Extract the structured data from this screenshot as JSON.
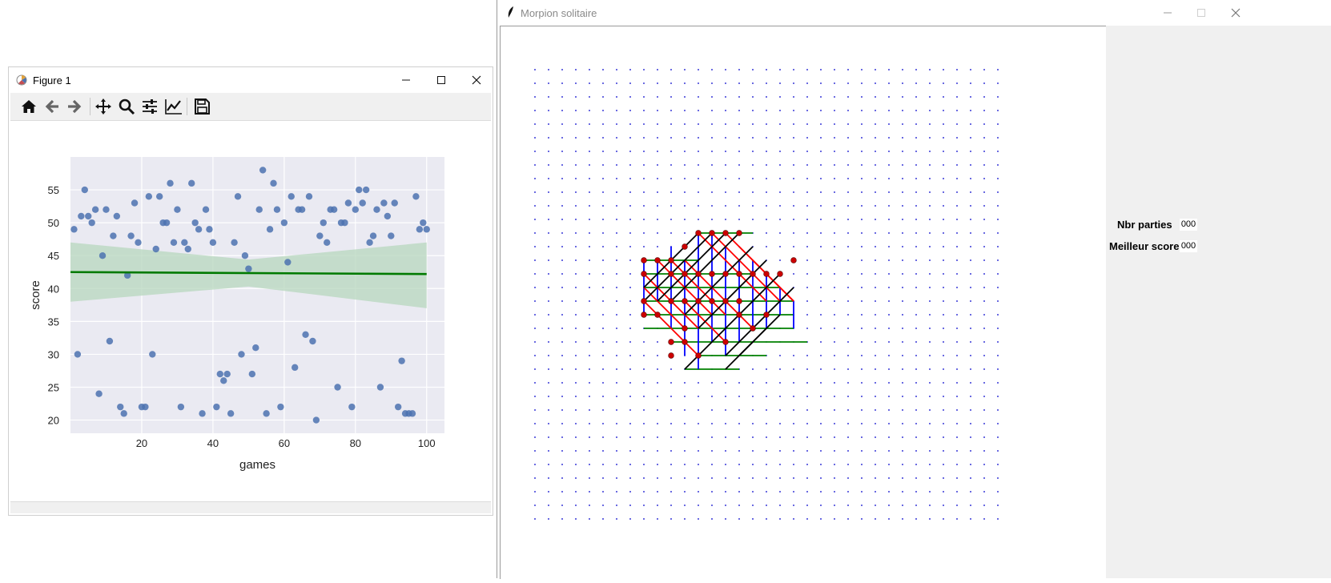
{
  "figure_window": {
    "title": "Figure 1",
    "toolbar": {
      "items": [
        "home-icon",
        "back-arrow-icon",
        "forward-arrow-icon",
        "pan-move-icon",
        "zoom-magnifier-icon",
        "subplots-config-icon",
        "edit-axis-icon",
        "save-floppy-icon"
      ]
    },
    "colors": {
      "points": "#4c72b0",
      "regression": "#007a00",
      "band": "#b7d7bd",
      "plot_bg": "#eaeaf2"
    }
  },
  "chart_data": {
    "type": "scatter",
    "title": "",
    "xlabel": "games",
    "ylabel": "score",
    "xlim": [
      0,
      105
    ],
    "ylim": [
      18,
      60
    ],
    "x_ticks": [
      20,
      40,
      60,
      80,
      100
    ],
    "y_ticks": [
      20,
      25,
      30,
      35,
      40,
      45,
      50,
      55
    ],
    "grid": true,
    "x": [
      1,
      2,
      3,
      4,
      5,
      6,
      7,
      8,
      9,
      10,
      11,
      12,
      13,
      14,
      15,
      16,
      17,
      18,
      19,
      20,
      21,
      22,
      23,
      24,
      25,
      26,
      27,
      28,
      29,
      30,
      31,
      32,
      33,
      34,
      35,
      36,
      37,
      38,
      39,
      40,
      41,
      42,
      43,
      44,
      45,
      46,
      47,
      48,
      49,
      50,
      51,
      52,
      53,
      54,
      55,
      56,
      57,
      58,
      59,
      60,
      61,
      62,
      63,
      64,
      65,
      66,
      67,
      68,
      69,
      70,
      71,
      72,
      73,
      74,
      75,
      76,
      77,
      78,
      79,
      80,
      81,
      82,
      83,
      84,
      85,
      86,
      87,
      88,
      89,
      90,
      91,
      92,
      93,
      94,
      95,
      96,
      97,
      98,
      99,
      100
    ],
    "values": [
      49,
      30,
      51,
      55,
      51,
      50,
      52,
      24,
      45,
      52,
      32,
      48,
      51,
      22,
      21,
      42,
      48,
      53,
      47,
      22,
      22,
      54,
      30,
      46,
      54,
      50,
      50,
      56,
      47,
      52,
      22,
      47,
      46,
      56,
      50,
      49,
      21,
      52,
      49,
      47,
      22,
      27,
      26,
      27,
      21,
      47,
      54,
      30,
      45,
      43,
      27,
      31,
      52,
      58,
      21,
      49,
      56,
      52,
      22,
      50,
      44,
      54,
      28,
      52,
      52,
      33,
      54,
      32,
      20,
      48,
      50,
      47,
      52,
      52,
      25,
      50,
      50,
      53,
      22,
      52,
      55,
      53,
      55,
      47,
      48,
      52,
      25,
      53,
      51,
      48,
      53,
      22,
      29,
      21,
      21,
      21,
      54,
      49,
      50,
      49
    ],
    "regression": {
      "x": [
        0,
        100
      ],
      "y": [
        42.5,
        42.2
      ]
    },
    "confidence_band": {
      "x": [
        0,
        50,
        100
      ],
      "upper": [
        47,
        44.4,
        47
      ],
      "lower": [
        38,
        40.3,
        37
      ]
    }
  },
  "morpion_window": {
    "title": "Morpion solitaire",
    "board": {
      "grid_cols": 35,
      "grid_rows": 34,
      "dot_color": "#0000cc",
      "line_colors": {
        "horizontal": "#008000",
        "vertical": "#0000ff",
        "diagonal_red": "#ff0000",
        "diagonal_black": "#000000"
      },
      "point_color": "#cc0000"
    },
    "stats": {
      "games_label": "Nbr parties",
      "games_value": "000",
      "best_label": "Meilleur score",
      "best_value": "000",
      "games_color": "#0000cc",
      "best_color": "#00bb00"
    }
  }
}
